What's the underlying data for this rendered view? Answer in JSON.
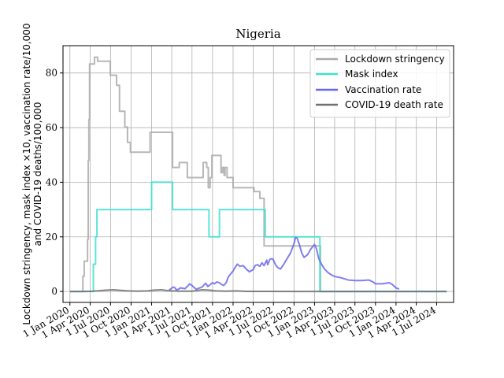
{
  "chart_data": {
    "type": "line",
    "title": "Nigeria",
    "xlabel": "",
    "ylabel_line1": "Lockdown stringency, mask index ×10, vaccination rate/10,000",
    "ylabel_line2": "and COVID-19 deaths/100,000",
    "xlim": [
      "2019-12-01",
      "2024-09-15"
    ],
    "ylim": [
      -4,
      90
    ],
    "grid": true,
    "legend_position": "top-right",
    "x_ticks": [
      {
        "date": "2020-01-01",
        "label": "1 Jan 2020"
      },
      {
        "date": "2020-04-01",
        "label": "1 Apr 2020"
      },
      {
        "date": "2020-07-01",
        "label": "1 Jul 2020"
      },
      {
        "date": "2020-10-01",
        "label": "1 Oct 2020"
      },
      {
        "date": "2021-01-01",
        "label": "1 Jan 2021"
      },
      {
        "date": "2021-04-01",
        "label": "1 Apr 2021"
      },
      {
        "date": "2021-07-01",
        "label": "1 Jul 2021"
      },
      {
        "date": "2021-10-01",
        "label": "1 Oct 2021"
      },
      {
        "date": "2022-01-01",
        "label": "1 Jan 2022"
      },
      {
        "date": "2022-04-01",
        "label": "1 Apr 2022"
      },
      {
        "date": "2022-07-01",
        "label": "1 Jul 2022"
      },
      {
        "date": "2022-10-01",
        "label": "1 Oct 2022"
      },
      {
        "date": "2023-01-01",
        "label": "1 Jan 2023"
      },
      {
        "date": "2023-04-01",
        "label": "1 Apr 2023"
      },
      {
        "date": "2023-07-01",
        "label": "1 Jul 2023"
      },
      {
        "date": "2023-10-01",
        "label": "1 Oct 2023"
      },
      {
        "date": "2024-01-01",
        "label": "1 Jan 2024"
      },
      {
        "date": "2024-04-01",
        "label": "1 Apr 2024"
      },
      {
        "date": "2024-07-01",
        "label": "1 Jul 2024"
      }
    ],
    "y_ticks": [
      {
        "value": 0,
        "label": "0"
      },
      {
        "value": 20,
        "label": "20"
      },
      {
        "value": 40,
        "label": "40"
      },
      {
        "value": 60,
        "label": "60"
      },
      {
        "value": 80,
        "label": "80"
      }
    ],
    "series": [
      {
        "name": "Lockdown stringency",
        "color": "#aaaaaa",
        "step": true,
        "points": [
          [
            "2020-01-01",
            0
          ],
          [
            "2020-02-28",
            0
          ],
          [
            "2020-02-28",
            5.6
          ],
          [
            "2020-03-05",
            5.6
          ],
          [
            "2020-03-05",
            11.1
          ],
          [
            "2020-03-20",
            11.1
          ],
          [
            "2020-03-20",
            19
          ],
          [
            "2020-03-23",
            19
          ],
          [
            "2020-03-23",
            48
          ],
          [
            "2020-03-26",
            48
          ],
          [
            "2020-03-26",
            63
          ],
          [
            "2020-03-29",
            63
          ],
          [
            "2020-03-29",
            83.3
          ],
          [
            "2020-04-20",
            83.3
          ],
          [
            "2020-04-20",
            85.8
          ],
          [
            "2020-05-04",
            85.8
          ],
          [
            "2020-05-04",
            84.3
          ],
          [
            "2020-06-30",
            84.3
          ],
          [
            "2020-06-30",
            79.2
          ],
          [
            "2020-07-28",
            79.2
          ],
          [
            "2020-07-28",
            75.5
          ],
          [
            "2020-08-10",
            75.5
          ],
          [
            "2020-08-10",
            66
          ],
          [
            "2020-09-03",
            66
          ],
          [
            "2020-09-03",
            60.2
          ],
          [
            "2020-09-15",
            60.2
          ],
          [
            "2020-09-15",
            54.6
          ],
          [
            "2020-09-28",
            54.6
          ],
          [
            "2020-09-28",
            51
          ],
          [
            "2020-12-25",
            51
          ],
          [
            "2020-12-25",
            58.3
          ],
          [
            "2021-04-05",
            58.3
          ],
          [
            "2021-04-05",
            45.4
          ],
          [
            "2021-05-05",
            45.4
          ],
          [
            "2021-05-05",
            47.2
          ],
          [
            "2021-06-10",
            47.2
          ],
          [
            "2021-06-10",
            41.7
          ],
          [
            "2021-08-20",
            41.7
          ],
          [
            "2021-08-20",
            47.2
          ],
          [
            "2021-09-05",
            47.2
          ],
          [
            "2021-09-05",
            45.4
          ],
          [
            "2021-09-12",
            45.4
          ],
          [
            "2021-09-12",
            38
          ],
          [
            "2021-09-20",
            38
          ],
          [
            "2021-09-20",
            41.7
          ],
          [
            "2021-09-28",
            41.7
          ],
          [
            "2021-09-28",
            49.8
          ],
          [
            "2021-11-08",
            49.8
          ],
          [
            "2021-11-08",
            43.5
          ],
          [
            "2021-11-15",
            43.5
          ],
          [
            "2021-11-15",
            45.4
          ],
          [
            "2021-11-22",
            45.4
          ],
          [
            "2021-11-22",
            42.5
          ],
          [
            "2021-11-26",
            42.5
          ],
          [
            "2021-11-26",
            45.4
          ],
          [
            "2021-12-05",
            45.4
          ],
          [
            "2021-12-05",
            41.7
          ],
          [
            "2022-01-01",
            41.7
          ],
          [
            "2022-01-01",
            38
          ],
          [
            "2022-04-05",
            38
          ],
          [
            "2022-04-05",
            36.6
          ],
          [
            "2022-05-01",
            36.6
          ],
          [
            "2022-05-01",
            34.1
          ],
          [
            "2022-05-20",
            34.1
          ],
          [
            "2022-05-20",
            16.7
          ],
          [
            "2023-01-27",
            16.7
          ],
          [
            "2023-01-27",
            0
          ],
          [
            "2024-08-15",
            0
          ]
        ]
      },
      {
        "name": "Mask index",
        "color": "#40e0d0",
        "step": true,
        "points": [
          [
            "2020-01-01",
            0
          ],
          [
            "2020-04-15",
            0
          ],
          [
            "2020-04-15",
            10
          ],
          [
            "2020-04-25",
            10
          ],
          [
            "2020-04-25",
            20
          ],
          [
            "2020-05-01",
            20
          ],
          [
            "2020-05-01",
            30
          ],
          [
            "2021-01-01",
            30
          ],
          [
            "2021-01-01",
            40
          ],
          [
            "2021-04-05",
            40
          ],
          [
            "2021-04-05",
            30
          ],
          [
            "2021-09-15",
            30
          ],
          [
            "2021-09-15",
            20
          ],
          [
            "2021-11-01",
            20
          ],
          [
            "2021-11-01",
            30
          ],
          [
            "2022-05-25",
            30
          ],
          [
            "2022-05-25",
            20
          ],
          [
            "2023-01-25",
            20
          ],
          [
            "2023-01-25",
            0
          ],
          [
            "2024-08-15",
            0
          ]
        ]
      },
      {
        "name": "Vaccination rate",
        "color": "#6868ee",
        "step": false,
        "points": [
          [
            "2021-03-20",
            0.5
          ],
          [
            "2021-04-01",
            1.2
          ],
          [
            "2021-04-08",
            1.6
          ],
          [
            "2021-04-15",
            1.4
          ],
          [
            "2021-04-22",
            0.6
          ],
          [
            "2021-05-01",
            0.8
          ],
          [
            "2021-05-10",
            1.3
          ],
          [
            "2021-05-20",
            1.2
          ],
          [
            "2021-05-30",
            1.0
          ],
          [
            "2021-06-10",
            1.8
          ],
          [
            "2021-06-20",
            2.8
          ],
          [
            "2021-07-01",
            2.2
          ],
          [
            "2021-07-10",
            1.5
          ],
          [
            "2021-07-20",
            0.8
          ],
          [
            "2021-08-01",
            1.2
          ],
          [
            "2021-08-15",
            1.6
          ],
          [
            "2021-08-25",
            2.5
          ],
          [
            "2021-09-01",
            3.0
          ],
          [
            "2021-09-10",
            1.8
          ],
          [
            "2021-09-20",
            2.5
          ],
          [
            "2021-10-01",
            3.2
          ],
          [
            "2021-10-10",
            2.8
          ],
          [
            "2021-10-20",
            3.5
          ],
          [
            "2021-11-01",
            3.2
          ],
          [
            "2021-11-10",
            2.6
          ],
          [
            "2021-11-20",
            2.2
          ],
          [
            "2021-12-01",
            3.2
          ],
          [
            "2021-12-10",
            5.2
          ],
          [
            "2021-12-20",
            6.3
          ],
          [
            "2022-01-01",
            7.5
          ],
          [
            "2022-01-10",
            8.8
          ],
          [
            "2022-01-20",
            10.0
          ],
          [
            "2022-02-01",
            9.2
          ],
          [
            "2022-02-15",
            9.5
          ],
          [
            "2022-03-01",
            8.2
          ],
          [
            "2022-03-15",
            7.2
          ],
          [
            "2022-04-01",
            8.0
          ],
          [
            "2022-04-10",
            9.5
          ],
          [
            "2022-04-20",
            9.8
          ],
          [
            "2022-05-01",
            9.2
          ],
          [
            "2022-05-10",
            10.5
          ],
          [
            "2022-05-20",
            9.5
          ],
          [
            "2022-06-01",
            11.5
          ],
          [
            "2022-06-05",
            9.8
          ],
          [
            "2022-06-15",
            11.8
          ],
          [
            "2022-06-25",
            12.0
          ],
          [
            "2022-07-01",
            11.5
          ],
          [
            "2022-07-10",
            9.8
          ],
          [
            "2022-07-20",
            8.8
          ],
          [
            "2022-08-01",
            8.2
          ],
          [
            "2022-08-15",
            9.8
          ],
          [
            "2022-09-01",
            12.2
          ],
          [
            "2022-09-15",
            14.0
          ],
          [
            "2022-10-01",
            17.5
          ],
          [
            "2022-10-08",
            19.8
          ],
          [
            "2022-10-15",
            19.5
          ],
          [
            "2022-10-25",
            17.2
          ],
          [
            "2022-11-05",
            14.0
          ],
          [
            "2022-11-15",
            12.5
          ],
          [
            "2022-12-01",
            13.5
          ],
          [
            "2022-12-15",
            15.5
          ],
          [
            "2023-01-01",
            17.2
          ],
          [
            "2023-01-10",
            15.5
          ],
          [
            "2023-01-20",
            12.0
          ],
          [
            "2023-02-01",
            10.0
          ],
          [
            "2023-02-15",
            8.2
          ],
          [
            "2023-03-01",
            7.0
          ],
          [
            "2023-03-15",
            6.2
          ],
          [
            "2023-04-01",
            5.5
          ],
          [
            "2023-05-01",
            5.0
          ],
          [
            "2023-06-01",
            4.2
          ],
          [
            "2023-07-01",
            4.0
          ],
          [
            "2023-08-01",
            4.0
          ],
          [
            "2023-09-01",
            4.2
          ],
          [
            "2023-09-20",
            3.5
          ],
          [
            "2023-10-01",
            2.8
          ],
          [
            "2023-11-01",
            2.8
          ],
          [
            "2023-12-01",
            3.2
          ],
          [
            "2023-12-15",
            2.6
          ],
          [
            "2024-01-01",
            1.3
          ],
          [
            "2024-01-15",
            0.9
          ]
        ]
      },
      {
        "name": "COVID-19 death rate",
        "color": "#707070",
        "step": false,
        "points": [
          [
            "2020-01-01",
            0
          ],
          [
            "2020-03-01",
            0
          ],
          [
            "2020-04-15",
            0.1
          ],
          [
            "2020-05-15",
            0.3
          ],
          [
            "2020-06-15",
            0.5
          ],
          [
            "2020-07-15",
            0.6
          ],
          [
            "2020-08-15",
            0.4
          ],
          [
            "2020-09-15",
            0.2
          ],
          [
            "2020-11-01",
            0.1
          ],
          [
            "2020-12-15",
            0.2
          ],
          [
            "2021-01-15",
            0.5
          ],
          [
            "2021-02-15",
            0.6
          ],
          [
            "2021-03-15",
            0.3
          ],
          [
            "2021-05-01",
            0.1
          ],
          [
            "2021-07-01",
            0.1
          ],
          [
            "2021-08-15",
            0.6
          ],
          [
            "2021-09-15",
            0.5
          ],
          [
            "2021-10-15",
            0.2
          ],
          [
            "2021-12-01",
            0.1
          ],
          [
            "2022-01-15",
            0.2
          ],
          [
            "2022-03-01",
            0.05
          ],
          [
            "2022-06-01",
            0.02
          ],
          [
            "2022-10-01",
            0.01
          ],
          [
            "2023-06-01",
            0
          ],
          [
            "2024-08-15",
            0
          ]
        ]
      }
    ]
  }
}
